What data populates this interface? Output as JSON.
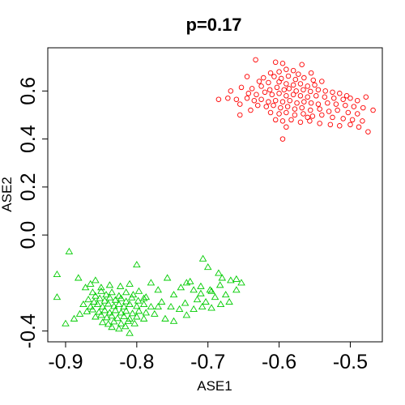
{
  "chart_data": {
    "type": "scatter",
    "title": "p=0.17",
    "xlabel": "ASE1",
    "ylabel": "ASE2",
    "xlim": [
      -0.925,
      -0.455
    ],
    "ylim": [
      -0.445,
      0.78
    ],
    "xticks": [
      -0.9,
      -0.8,
      -0.7,
      -0.6,
      -0.5
    ],
    "xtick_labels": [
      "-0.9",
      "-0.8",
      "-0.7",
      "-0.6",
      "-0.5"
    ],
    "yticks": [
      -0.4,
      0.0,
      0.2,
      0.4,
      0.6
    ],
    "ytick_labels": [
      "-0.4",
      "0.0",
      "0.2",
      "0.4",
      "0.6"
    ],
    "grid": false,
    "legend": "none",
    "series": [
      {
        "marker": "circle",
        "color": "#ff0000",
        "points": [
          [
            -0.633,
            0.73
          ],
          [
            -0.605,
            0.72
          ],
          [
            -0.595,
            0.715
          ],
          [
            -0.59,
            0.69
          ],
          [
            -0.568,
            0.71
          ],
          [
            -0.6,
            0.68
          ],
          [
            -0.612,
            0.675
          ],
          [
            -0.58,
            0.685
          ],
          [
            -0.573,
            0.67
          ],
          [
            -0.555,
            0.675
          ],
          [
            -0.645,
            0.66
          ],
          [
            -0.622,
            0.655
          ],
          [
            -0.607,
            0.66
          ],
          [
            -0.597,
            0.652
          ],
          [
            -0.587,
            0.662
          ],
          [
            -0.577,
            0.648
          ],
          [
            -0.565,
            0.655
          ],
          [
            -0.552,
            0.645
          ],
          [
            -0.54,
            0.64
          ],
          [
            -0.628,
            0.64
          ],
          [
            -0.615,
            0.635
          ],
          [
            -0.6,
            0.638
          ],
          [
            -0.59,
            0.63
          ],
          [
            -0.58,
            0.625
          ],
          [
            -0.57,
            0.63
          ],
          [
            -0.56,
            0.62
          ],
          [
            -0.55,
            0.625
          ],
          [
            -0.653,
            0.615
          ],
          [
            -0.638,
            0.61
          ],
          [
            -0.625,
            0.62
          ],
          [
            -0.613,
            0.605
          ],
          [
            -0.603,
            0.615
          ],
          [
            -0.593,
            0.605
          ],
          [
            -0.586,
            0.61
          ],
          [
            -0.576,
            0.6
          ],
          [
            -0.566,
            0.605
          ],
          [
            -0.556,
            0.598
          ],
          [
            -0.545,
            0.605
          ],
          [
            -0.535,
            0.6
          ],
          [
            -0.525,
            0.595
          ],
          [
            -0.515,
            0.59
          ],
          [
            -0.505,
            0.58
          ],
          [
            -0.668,
            0.6
          ],
          [
            -0.643,
            0.59
          ],
          [
            -0.632,
            0.585
          ],
          [
            -0.62,
            0.595
          ],
          [
            -0.61,
            0.585
          ],
          [
            -0.6,
            0.59
          ],
          [
            -0.59,
            0.58
          ],
          [
            -0.58,
            0.585
          ],
          [
            -0.57,
            0.58
          ],
          [
            -0.56,
            0.575
          ],
          [
            -0.548,
            0.58
          ],
          [
            -0.536,
            0.575
          ],
          [
            -0.523,
            0.57
          ],
          [
            -0.51,
            0.565
          ],
          [
            -0.5,
            0.57
          ],
          [
            -0.49,
            0.56
          ],
          [
            -0.478,
            0.575
          ],
          [
            -0.685,
            0.565
          ],
          [
            -0.672,
            0.57
          ],
          [
            -0.66,
            0.565
          ],
          [
            -0.645,
            0.57
          ],
          [
            -0.635,
            0.56
          ],
          [
            -0.625,
            0.565
          ],
          [
            -0.615,
            0.555
          ],
          [
            -0.605,
            0.56
          ],
          [
            -0.595,
            0.555
          ],
          [
            -0.585,
            0.56
          ],
          [
            -0.575,
            0.55
          ],
          [
            -0.565,
            0.555
          ],
          [
            -0.555,
            0.55
          ],
          [
            -0.545,
            0.545
          ],
          [
            -0.532,
            0.55
          ],
          [
            -0.52,
            0.545
          ],
          [
            -0.507,
            0.54
          ],
          [
            -0.495,
            0.535
          ],
          [
            -0.482,
            0.53
          ],
          [
            -0.468,
            0.52
          ],
          [
            -0.63,
            0.54
          ],
          [
            -0.618,
            0.535
          ],
          [
            -0.608,
            0.54
          ],
          [
            -0.598,
            0.53
          ],
          [
            -0.588,
            0.535
          ],
          [
            -0.578,
            0.525
          ],
          [
            -0.568,
            0.53
          ],
          [
            -0.556,
            0.52
          ],
          [
            -0.543,
            0.525
          ],
          [
            -0.53,
            0.515
          ],
          [
            -0.518,
            0.52
          ],
          [
            -0.503,
            0.51
          ],
          [
            -0.49,
            0.505
          ],
          [
            -0.612,
            0.51
          ],
          [
            -0.6,
            0.505
          ],
          [
            -0.59,
            0.51
          ],
          [
            -0.578,
            0.5
          ],
          [
            -0.566,
            0.505
          ],
          [
            -0.553,
            0.495
          ],
          [
            -0.54,
            0.5
          ],
          [
            -0.525,
            0.49
          ],
          [
            -0.51,
            0.485
          ],
          [
            -0.497,
            0.48
          ],
          [
            -0.483,
            0.475
          ],
          [
            -0.605,
            0.48
          ],
          [
            -0.595,
            0.475
          ],
          [
            -0.583,
            0.48
          ],
          [
            -0.57,
            0.47
          ],
          [
            -0.557,
            0.475
          ],
          [
            -0.543,
            0.465
          ],
          [
            -0.528,
            0.46
          ],
          [
            -0.515,
            0.455
          ],
          [
            -0.5,
            0.46
          ],
          [
            -0.488,
            0.45
          ],
          [
            -0.475,
            0.43
          ],
          [
            -0.655,
            0.5
          ],
          [
            -0.64,
            0.52
          ],
          [
            -0.655,
            0.545
          ],
          [
            -0.595,
            0.4
          ],
          [
            -0.59,
            0.45
          ],
          [
            -0.56,
            0.49
          ]
        ]
      },
      {
        "marker": "triangle",
        "color": "#00cc00",
        "points": [
          [
            -0.895,
            -0.07
          ],
          [
            -0.912,
            -0.165
          ],
          [
            -0.882,
            -0.18
          ],
          [
            -0.872,
            -0.22
          ],
          [
            -0.858,
            -0.19
          ],
          [
            -0.8,
            -0.125
          ],
          [
            -0.78,
            -0.2
          ],
          [
            -0.77,
            -0.23
          ],
          [
            -0.757,
            -0.18
          ],
          [
            -0.707,
            -0.1
          ],
          [
            -0.7,
            -0.135
          ],
          [
            -0.685,
            -0.16
          ],
          [
            -0.668,
            -0.19
          ],
          [
            -0.683,
            -0.21
          ],
          [
            -0.697,
            -0.23
          ],
          [
            -0.71,
            -0.245
          ],
          [
            -0.72,
            -0.23
          ],
          [
            -0.73,
            -0.2
          ],
          [
            -0.738,
            -0.22
          ],
          [
            -0.748,
            -0.25
          ],
          [
            -0.69,
            -0.26
          ],
          [
            -0.703,
            -0.28
          ],
          [
            -0.675,
            -0.25
          ],
          [
            -0.66,
            -0.23
          ],
          [
            -0.715,
            -0.27
          ],
          [
            -0.732,
            -0.285
          ],
          [
            -0.74,
            -0.31
          ],
          [
            -0.752,
            -0.3
          ],
          [
            -0.765,
            -0.28
          ],
          [
            -0.77,
            -0.3
          ],
          [
            -0.862,
            -0.24
          ],
          [
            -0.858,
            -0.255
          ],
          [
            -0.85,
            -0.235
          ],
          [
            -0.843,
            -0.25
          ],
          [
            -0.835,
            -0.24
          ],
          [
            -0.825,
            -0.255
          ],
          [
            -0.815,
            -0.24
          ],
          [
            -0.805,
            -0.25
          ],
          [
            -0.797,
            -0.235
          ],
          [
            -0.787,
            -0.26
          ],
          [
            -0.868,
            -0.27
          ],
          [
            -0.86,
            -0.28
          ],
          [
            -0.852,
            -0.265
          ],
          [
            -0.845,
            -0.275
          ],
          [
            -0.838,
            -0.262
          ],
          [
            -0.83,
            -0.272
          ],
          [
            -0.822,
            -0.265
          ],
          [
            -0.815,
            -0.278
          ],
          [
            -0.807,
            -0.262
          ],
          [
            -0.798,
            -0.275
          ],
          [
            -0.79,
            -0.265
          ],
          [
            -0.875,
            -0.29
          ],
          [
            -0.865,
            -0.3
          ],
          [
            -0.855,
            -0.29
          ],
          [
            -0.848,
            -0.3
          ],
          [
            -0.84,
            -0.288
          ],
          [
            -0.832,
            -0.298
          ],
          [
            -0.825,
            -0.29
          ],
          [
            -0.818,
            -0.3
          ],
          [
            -0.81,
            -0.29
          ],
          [
            -0.8,
            -0.298
          ],
          [
            -0.79,
            -0.29
          ],
          [
            -0.78,
            -0.3
          ],
          [
            -0.87,
            -0.32
          ],
          [
            -0.862,
            -0.312
          ],
          [
            -0.853,
            -0.322
          ],
          [
            -0.845,
            -0.315
          ],
          [
            -0.838,
            -0.325
          ],
          [
            -0.83,
            -0.315
          ],
          [
            -0.822,
            -0.325
          ],
          [
            -0.815,
            -0.318
          ],
          [
            -0.806,
            -0.328
          ],
          [
            -0.797,
            -0.318
          ],
          [
            -0.787,
            -0.325
          ],
          [
            -0.858,
            -0.342
          ],
          [
            -0.85,
            -0.335
          ],
          [
            -0.842,
            -0.345
          ],
          [
            -0.835,
            -0.338
          ],
          [
            -0.827,
            -0.348
          ],
          [
            -0.818,
            -0.34
          ],
          [
            -0.81,
            -0.35
          ],
          [
            -0.8,
            -0.342
          ],
          [
            -0.79,
            -0.35
          ],
          [
            -0.848,
            -0.365
          ],
          [
            -0.84,
            -0.372
          ],
          [
            -0.832,
            -0.362
          ],
          [
            -0.822,
            -0.37
          ],
          [
            -0.812,
            -0.36
          ],
          [
            -0.803,
            -0.37
          ],
          [
            -0.835,
            -0.385
          ],
          [
            -0.825,
            -0.392
          ],
          [
            -0.816,
            -0.382
          ],
          [
            -0.81,
            -0.41
          ],
          [
            -0.88,
            -0.33
          ],
          [
            -0.888,
            -0.35
          ],
          [
            -0.9,
            -0.37
          ],
          [
            -0.912,
            -0.26
          ],
          [
            -0.775,
            -0.33
          ],
          [
            -0.76,
            -0.35
          ],
          [
            -0.748,
            -0.36
          ],
          [
            -0.73,
            -0.335
          ],
          [
            -0.72,
            -0.31
          ],
          [
            -0.708,
            -0.3
          ],
          [
            -0.695,
            -0.305
          ],
          [
            -0.682,
            -0.29
          ],
          [
            -0.67,
            -0.28
          ],
          [
            -0.695,
            -0.235
          ],
          [
            -0.71,
            -0.215
          ],
          [
            -0.725,
            -0.195
          ],
          [
            -0.653,
            -0.2
          ],
          [
            -0.66,
            -0.185
          ],
          [
            -0.68,
            -0.18
          ],
          [
            -0.85,
            -0.22
          ],
          [
            -0.838,
            -0.21
          ],
          [
            -0.823,
            -0.215
          ],
          [
            -0.81,
            -0.205
          ],
          [
            -0.865,
            -0.205
          ]
        ]
      }
    ]
  }
}
